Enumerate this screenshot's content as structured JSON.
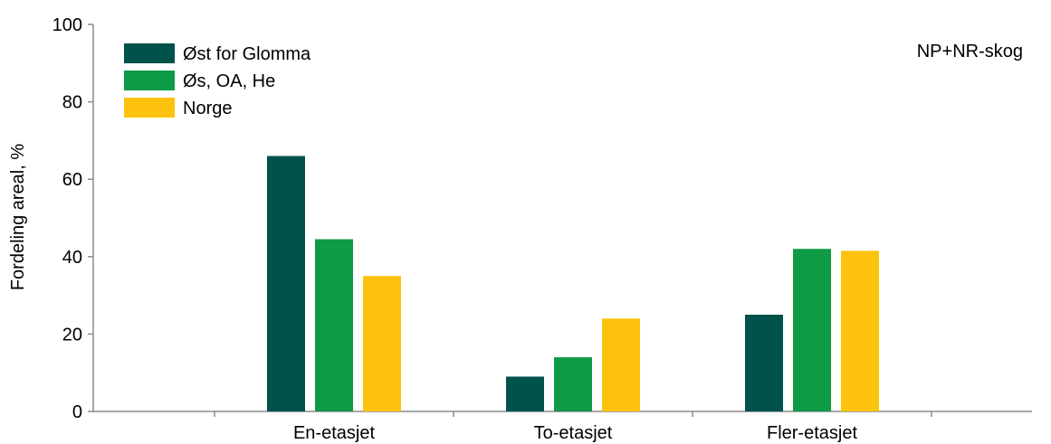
{
  "chart_data": {
    "type": "bar",
    "categories": [
      "En-etasjet",
      "To-etasjet",
      "Fler-etasjet"
    ],
    "series": [
      {
        "name": "Øst for Glomma",
        "color": "#00524a",
        "values": [
          66,
          9,
          25
        ]
      },
      {
        "name": "Øs, OA, He",
        "color": "#0f9a45",
        "values": [
          44.5,
          14,
          42
        ]
      },
      {
        "name": "Norge",
        "color": "#fcc20e",
        "values": [
          35,
          24,
          41.5
        ]
      }
    ],
    "title": "",
    "xlabel": "",
    "ylabel": "Fordeling areal, %",
    "ylim": [
      0,
      100
    ],
    "yticks": [
      0,
      20,
      40,
      60,
      80,
      100
    ],
    "annotation": "NP+NR-skog",
    "grid": false,
    "legend_position": "top-left"
  }
}
